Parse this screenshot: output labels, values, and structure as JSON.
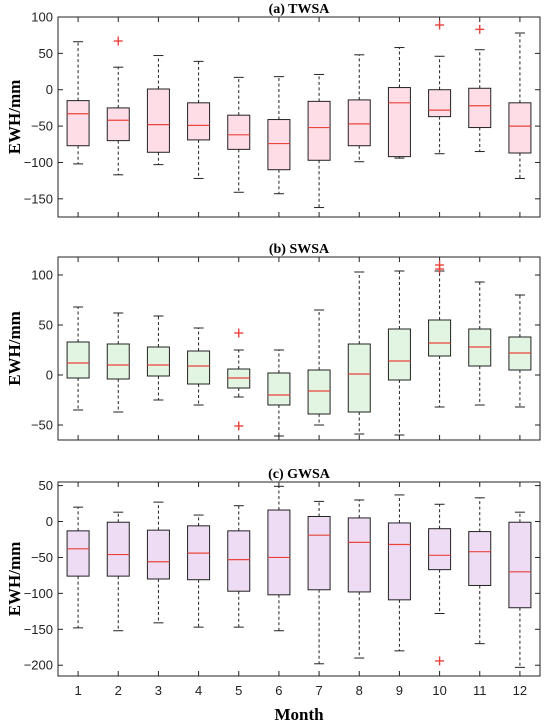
{
  "chart_data": [
    {
      "type": "box",
      "title": "(a) TWSA",
      "ylabel": "EWH/mm",
      "xlabel": "",
      "categories": [
        "1",
        "2",
        "3",
        "4",
        "5",
        "6",
        "7",
        "8",
        "9",
        "10",
        "11",
        "12"
      ],
      "ylim": [
        -175,
        100
      ],
      "yticks": [
        -150,
        -100,
        -50,
        0,
        50,
        100
      ],
      "box_color": "#ffdde6",
      "boxes": [
        {
          "min": -102,
          "q1": -77,
          "median": -33,
          "q3": -15,
          "max": 66,
          "outliers": []
        },
        {
          "min": -117,
          "q1": -70,
          "median": -42,
          "q3": -25,
          "max": 31,
          "outliers": [
            67
          ]
        },
        {
          "min": -103,
          "q1": -86,
          "median": -48,
          "q3": 1,
          "max": 47,
          "outliers": []
        },
        {
          "min": -122,
          "q1": -69,
          "median": -49,
          "q3": -18,
          "max": 39,
          "outliers": []
        },
        {
          "min": -141,
          "q1": -82,
          "median": -62,
          "q3": -35,
          "max": 17,
          "outliers": []
        },
        {
          "min": -143,
          "q1": -110,
          "median": -74,
          "q3": -41,
          "max": 18,
          "outliers": []
        },
        {
          "min": -162,
          "q1": -97,
          "median": -52,
          "q3": -16,
          "max": 21,
          "outliers": []
        },
        {
          "min": -99,
          "q1": -77,
          "median": -47,
          "q3": -14,
          "max": 48,
          "outliers": []
        },
        {
          "min": -94,
          "q1": -92,
          "median": -18,
          "q3": 3,
          "max": 58,
          "outliers": []
        },
        {
          "min": -88,
          "q1": -37,
          "median": -28,
          "q3": 0,
          "max": 46,
          "outliers": [
            89
          ]
        },
        {
          "min": -85,
          "q1": -52,
          "median": -22,
          "q3": 2,
          "max": 55,
          "outliers": [
            83
          ]
        },
        {
          "min": -122,
          "q1": -87,
          "median": -50,
          "q3": -18,
          "max": 78,
          "outliers": []
        }
      ]
    },
    {
      "type": "box",
      "title": "(b) SWSA",
      "ylabel": "EWH/mm",
      "xlabel": "",
      "categories": [
        "1",
        "2",
        "3",
        "4",
        "5",
        "6",
        "7",
        "8",
        "9",
        "10",
        "11",
        "12"
      ],
      "ylim": [
        -65,
        118
      ],
      "yticks": [
        -50,
        0,
        50,
        100
      ],
      "box_color": "#e2f5e2",
      "boxes": [
        {
          "min": -35,
          "q1": -3,
          "median": 12,
          "q3": 33,
          "max": 68,
          "outliers": []
        },
        {
          "min": -37,
          "q1": -4,
          "median": 10,
          "q3": 31,
          "max": 62,
          "outliers": []
        },
        {
          "min": -25,
          "q1": -1,
          "median": 10,
          "q3": 28,
          "max": 59,
          "outliers": []
        },
        {
          "min": -30,
          "q1": -9,
          "median": 9,
          "q3": 24,
          "max": 47,
          "outliers": []
        },
        {
          "min": -22,
          "q1": -13,
          "median": -3,
          "q3": 6,
          "max": 25,
          "outliers": [
            42,
            -51
          ]
        },
        {
          "min": -61,
          "q1": -30,
          "median": -20,
          "q3": 2,
          "max": 25,
          "outliers": []
        },
        {
          "min": -50,
          "q1": -39,
          "median": -16,
          "q3": 5,
          "max": 65,
          "outliers": []
        },
        {
          "min": -59,
          "q1": -37,
          "median": 1,
          "q3": 31,
          "max": 103,
          "outliers": []
        },
        {
          "min": -60,
          "q1": -5,
          "median": 14,
          "q3": 46,
          "max": 104,
          "outliers": []
        },
        {
          "min": -32,
          "q1": 19,
          "median": 32,
          "q3": 55,
          "max": 104,
          "outliers": [
            110,
            106
          ]
        },
        {
          "min": -30,
          "q1": 9,
          "median": 28,
          "q3": 46,
          "max": 93,
          "outliers": []
        },
        {
          "min": -32,
          "q1": 5,
          "median": 22,
          "q3": 38,
          "max": 80,
          "outliers": []
        }
      ]
    },
    {
      "type": "box",
      "title": "(c) GWSA",
      "ylabel": "EWH/mm",
      "xlabel": "Month",
      "categories": [
        "1",
        "2",
        "3",
        "4",
        "5",
        "6",
        "7",
        "8",
        "9",
        "10",
        "11",
        "12"
      ],
      "ylim": [
        -215,
        55
      ],
      "yticks": [
        -200,
        -150,
        -100,
        -50,
        0,
        50
      ],
      "box_color": "#eedcf5",
      "boxes": [
        {
          "min": -148,
          "q1": -76,
          "median": -38,
          "q3": -13,
          "max": 20,
          "outliers": []
        },
        {
          "min": -152,
          "q1": -76,
          "median": -46,
          "q3": -1,
          "max": 13,
          "outliers": []
        },
        {
          "min": -141,
          "q1": -80,
          "median": -56,
          "q3": -12,
          "max": 27,
          "outliers": []
        },
        {
          "min": -147,
          "q1": -81,
          "median": -44,
          "q3": -6,
          "max": 9,
          "outliers": []
        },
        {
          "min": -147,
          "q1": -97,
          "median": -53,
          "q3": -13,
          "max": 22,
          "outliers": []
        },
        {
          "min": -152,
          "q1": -102,
          "median": -50,
          "q3": 16,
          "max": 49,
          "outliers": []
        },
        {
          "min": -198,
          "q1": -95,
          "median": -19,
          "q3": 7,
          "max": 28,
          "outliers": []
        },
        {
          "min": -190,
          "q1": -98,
          "median": -29,
          "q3": 5,
          "max": 30,
          "outliers": []
        },
        {
          "min": -180,
          "q1": -109,
          "median": -32,
          "q3": -2,
          "max": 37,
          "outliers": []
        },
        {
          "min": -128,
          "q1": -67,
          "median": -47,
          "q3": -10,
          "max": 24,
          "outliers": [
            -194
          ]
        },
        {
          "min": -170,
          "q1": -89,
          "median": -42,
          "q3": -14,
          "max": 33,
          "outliers": []
        },
        {
          "min": -203,
          "q1": -120,
          "median": -70,
          "q3": -1,
          "max": 13,
          "outliers": []
        }
      ]
    }
  ],
  "colors": {
    "median": "#e8453c",
    "outlier": "#e8453c",
    "edge": "#222222"
  }
}
